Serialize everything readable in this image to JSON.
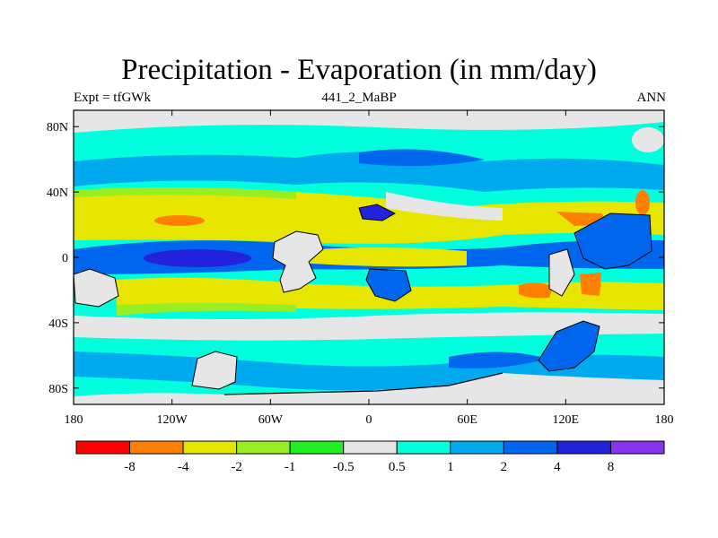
{
  "chart_data": {
    "type": "heatmap",
    "title": "Precipitation - Evaporation (in mm/day)",
    "subtitle_left": "Expt = tfGWk",
    "subtitle_center": "441_2_MaBP",
    "subtitle_right": "ANN",
    "x_ticks": [
      "180",
      "120W",
      "60W",
      "0",
      "60E",
      "120E",
      "180"
    ],
    "y_ticks": [
      "80N",
      "40N",
      "0",
      "40S",
      "80S"
    ],
    "xlim": [
      -180,
      180
    ],
    "ylim": [
      -90,
      90
    ],
    "colorbar": {
      "boundaries": [
        "-8",
        "-4",
        "-2",
        "-1",
        "-0.5",
        "0.5",
        "1",
        "2",
        "4",
        "8"
      ],
      "colors": [
        "#ff0000",
        "#ff8000",
        "#e6e600",
        "#99ee22",
        "#22ee22",
        "#e6e6e6",
        "#00ffdd",
        "#00aaee",
        "#0066ee",
        "#2222dd",
        "#8833ee"
      ]
    }
  }
}
